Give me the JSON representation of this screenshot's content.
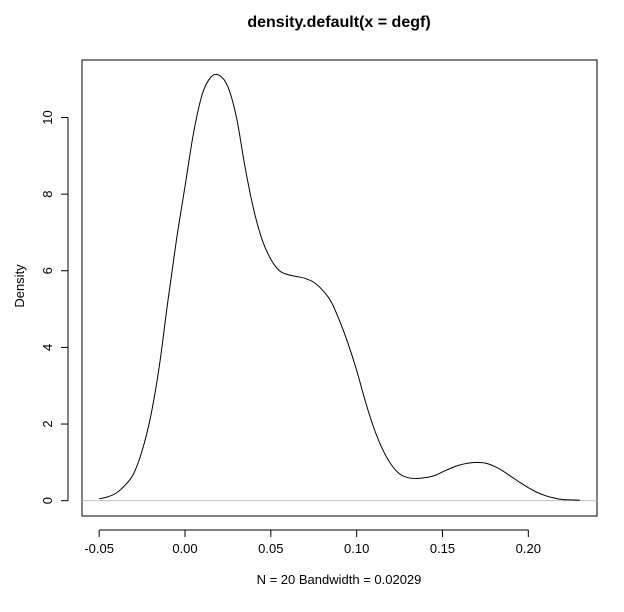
{
  "chart_data": {
    "type": "line",
    "title": "density.default(x = degf)",
    "xlabel": "N = 20   Bandwidth = 0.02029",
    "ylabel": "Density",
    "xlim": [
      -0.06,
      0.24
    ],
    "ylim": [
      -0.4,
      11.5
    ],
    "x_ticks": [
      -0.05,
      0.0,
      0.05,
      0.1,
      0.15,
      0.2
    ],
    "x_tick_labels": [
      "-0.05",
      "0.00",
      "0.05",
      "0.10",
      "0.15",
      "0.20"
    ],
    "y_ticks": [
      0,
      2,
      4,
      6,
      8,
      10
    ],
    "y_tick_labels": [
      "0",
      "2",
      "4",
      "6",
      "8",
      "10"
    ],
    "baseline": 0,
    "grid": false,
    "legend": "none",
    "colors": {
      "line": "#000000",
      "baseline": "#bebebe",
      "frame": "#000000"
    },
    "series": [
      {
        "x": [
          -0.05,
          -0.045,
          -0.04,
          -0.035,
          -0.03,
          -0.025,
          -0.02,
          -0.015,
          -0.01,
          -0.005,
          0.0,
          0.005,
          0.01,
          0.015,
          0.02,
          0.025,
          0.03,
          0.035,
          0.04,
          0.045,
          0.05,
          0.055,
          0.06,
          0.065,
          0.07,
          0.075,
          0.08,
          0.085,
          0.09,
          0.095,
          0.1,
          0.105,
          0.11,
          0.115,
          0.12,
          0.125,
          0.13,
          0.135,
          0.14,
          0.145,
          0.15,
          0.155,
          0.16,
          0.165,
          0.17,
          0.175,
          0.18,
          0.185,
          0.19,
          0.195,
          0.2,
          0.205,
          0.21,
          0.215,
          0.22,
          0.225,
          0.23
        ],
        "values": [
          0.05,
          0.1,
          0.2,
          0.4,
          0.7,
          1.3,
          2.2,
          3.5,
          5.2,
          6.8,
          8.2,
          9.6,
          10.6,
          11.05,
          11.1,
          10.8,
          10.0,
          8.7,
          7.6,
          6.8,
          6.3,
          6.0,
          5.9,
          5.85,
          5.8,
          5.7,
          5.5,
          5.2,
          4.7,
          4.1,
          3.4,
          2.6,
          1.9,
          1.35,
          0.95,
          0.7,
          0.6,
          0.58,
          0.6,
          0.65,
          0.75,
          0.85,
          0.93,
          0.98,
          1.0,
          0.98,
          0.9,
          0.78,
          0.63,
          0.48,
          0.34,
          0.22,
          0.13,
          0.07,
          0.03,
          0.02,
          0.01
        ]
      }
    ]
  }
}
